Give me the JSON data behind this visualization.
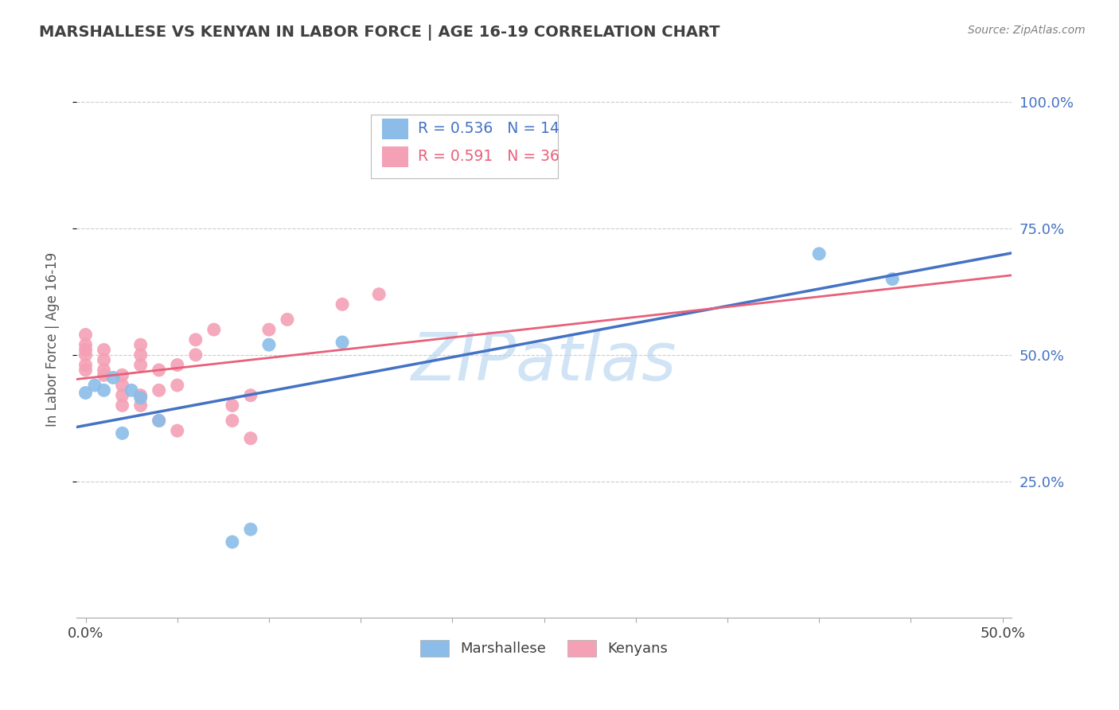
{
  "title": "MARSHALLESE VS KENYAN IN LABOR FORCE | AGE 16-19 CORRELATION CHART",
  "source_text": "Source: ZipAtlas.com",
  "ylabel": "In Labor Force | Age 16-19",
  "xlim": [
    -0.005,
    0.505
  ],
  "ylim": [
    -0.02,
    1.08
  ],
  "xtick_positions": [
    0.0,
    0.05,
    0.1,
    0.15,
    0.2,
    0.25,
    0.3,
    0.35,
    0.4,
    0.45,
    0.5
  ],
  "ytick_positions": [
    0.25,
    0.5,
    0.75,
    1.0
  ],
  "ytick_labels": [
    "25.0%",
    "50.0%",
    "75.0%",
    "100.0%"
  ],
  "marshallese_x": [
    0.0,
    0.005,
    0.01,
    0.015,
    0.02,
    0.025,
    0.03,
    0.04,
    0.08,
    0.09,
    0.1,
    0.14,
    0.4,
    0.44
  ],
  "marshallese_y": [
    0.425,
    0.44,
    0.43,
    0.455,
    0.345,
    0.43,
    0.415,
    0.37,
    0.13,
    0.155,
    0.52,
    0.525,
    0.7,
    0.65
  ],
  "kenyan_x": [
    0.0,
    0.0,
    0.0,
    0.0,
    0.0,
    0.0,
    0.01,
    0.01,
    0.01,
    0.01,
    0.02,
    0.02,
    0.02,
    0.02,
    0.03,
    0.03,
    0.03,
    0.03,
    0.03,
    0.04,
    0.04,
    0.04,
    0.05,
    0.05,
    0.05,
    0.06,
    0.06,
    0.07,
    0.08,
    0.08,
    0.09,
    0.09,
    0.1,
    0.11,
    0.14,
    0.16
  ],
  "kenyan_y": [
    0.47,
    0.48,
    0.5,
    0.51,
    0.52,
    0.54,
    0.46,
    0.47,
    0.49,
    0.51,
    0.4,
    0.42,
    0.44,
    0.46,
    0.4,
    0.42,
    0.48,
    0.5,
    0.52,
    0.37,
    0.43,
    0.47,
    0.35,
    0.44,
    0.48,
    0.5,
    0.53,
    0.55,
    0.37,
    0.4,
    0.335,
    0.42,
    0.55,
    0.57,
    0.6,
    0.62
  ],
  "marshallese_R": 0.536,
  "marshallese_N": 14,
  "kenyan_R": 0.591,
  "kenyan_N": 36,
  "marshallese_color": "#8BBDE8",
  "kenyan_color": "#F4A0B5",
  "marshallese_line_color": "#4472C4",
  "kenyan_line_color": "#E8607A",
  "watermark_text": "ZIPatlas",
  "watermark_color": "#D0E4F5",
  "background_color": "#FFFFFF",
  "grid_color": "#CCCCCC",
  "title_color": "#404040",
  "source_color": "#808080",
  "blue_label_color": "#4472C4",
  "pink_label_color": "#E8607A"
}
